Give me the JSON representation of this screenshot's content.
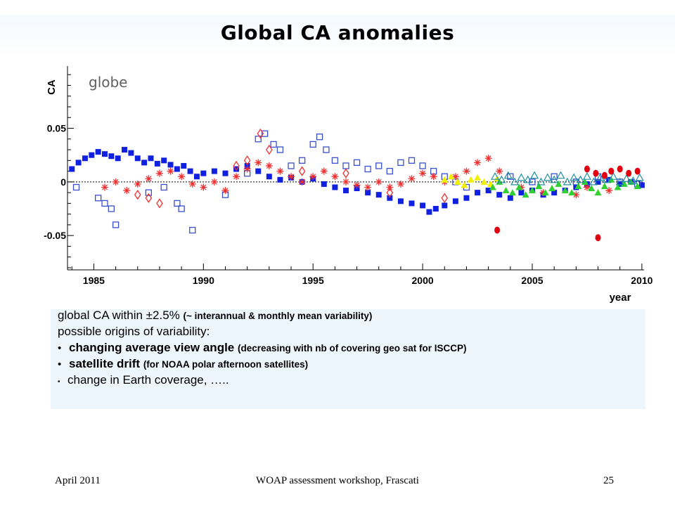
{
  "slide": {
    "title": "Global CA anomalies"
  },
  "chart_data": {
    "type": "scatter",
    "panel_label": "globe",
    "ylabel": "CA",
    "xlabel": "year",
    "xlim": [
      1983.8,
      2010.1
    ],
    "ylim": [
      -0.082,
      0.108
    ],
    "xticks": [
      1985,
      1990,
      1995,
      2000,
      2005,
      2010
    ],
    "yticks": [
      0.05,
      0,
      -0.05
    ],
    "ytick_labels": [
      "0.05",
      "0",
      "-0.05"
    ],
    "reference_line": 0,
    "colors": {
      "blue_filled": "#1020e0",
      "blue_open": "#3850d0",
      "red": "#f03030",
      "yellow": "#f0f000",
      "green": "#30d030",
      "teal": "#2090a0",
      "dark_red": "#e00010"
    },
    "series": [
      {
        "marker": "filled-square",
        "color": "#1020e0",
        "points": [
          [
            1984.0,
            0.012
          ],
          [
            1984.3,
            0.018
          ],
          [
            1984.6,
            0.022
          ],
          [
            1984.9,
            0.025
          ],
          [
            1985.2,
            0.028
          ],
          [
            1985.5,
            0.026
          ],
          [
            1985.8,
            0.024
          ],
          [
            1986.1,
            0.022
          ],
          [
            1986.4,
            0.03
          ],
          [
            1986.7,
            0.027
          ],
          [
            1987.0,
            0.022
          ],
          [
            1987.3,
            0.018
          ],
          [
            1987.6,
            0.022
          ],
          [
            1987.9,
            0.017
          ],
          [
            1988.2,
            0.02
          ],
          [
            1988.5,
            0.016
          ],
          [
            1988.8,
            0.012
          ],
          [
            1989.1,
            0.015
          ],
          [
            1989.4,
            0.01
          ],
          [
            1989.7,
            0.005
          ],
          [
            1990.0,
            0.008
          ],
          [
            1990.5,
            0.01
          ],
          [
            1991.0,
            0.008
          ],
          [
            1991.5,
            0.012
          ],
          [
            1992.0,
            0.015
          ],
          [
            1992.5,
            0.01
          ],
          [
            1993.0,
            0.005
          ],
          [
            1993.5,
            0.002
          ],
          [
            1994.0,
            0.004
          ],
          [
            1994.5,
            0.0
          ],
          [
            1995.0,
            0.003
          ],
          [
            1995.5,
            -0.002
          ],
          [
            1996.0,
            -0.005
          ],
          [
            1996.5,
            -0.008
          ],
          [
            1997.0,
            -0.006
          ],
          [
            1997.5,
            -0.01
          ],
          [
            1998.0,
            -0.012
          ],
          [
            1998.5,
            -0.015
          ],
          [
            1999.0,
            -0.018
          ],
          [
            1999.5,
            -0.02
          ],
          [
            2000.0,
            -0.022
          ],
          [
            2000.3,
            -0.028
          ],
          [
            2000.6,
            -0.025
          ],
          [
            2001.0,
            -0.022
          ],
          [
            2001.5,
            -0.018
          ],
          [
            2002.0,
            -0.015
          ],
          [
            2002.5,
            -0.01
          ],
          [
            2003.0,
            -0.008
          ],
          [
            2003.5,
            -0.012
          ],
          [
            2004.0,
            -0.015
          ],
          [
            2004.5,
            -0.01
          ],
          [
            2005.0,
            -0.008
          ],
          [
            2005.5,
            -0.012
          ],
          [
            2006.0,
            -0.01
          ],
          [
            2006.5,
            -0.008
          ],
          [
            2007.0,
            -0.005
          ],
          [
            2007.5,
            -0.002
          ],
          [
            2008.0,
            0.0
          ],
          [
            2008.5,
            0.002
          ],
          [
            2009.0,
            -0.002
          ],
          [
            2009.5,
            0.0
          ],
          [
            2010.0,
            -0.003
          ]
        ]
      },
      {
        "marker": "open-square",
        "color": "#3850d0",
        "points": [
          [
            1984.2,
            -0.005
          ],
          [
            1985.2,
            -0.015
          ],
          [
            1985.5,
            -0.02
          ],
          [
            1985.8,
            -0.025
          ],
          [
            1986.0,
            -0.04
          ],
          [
            1987.5,
            -0.01
          ],
          [
            1988.2,
            -0.005
          ],
          [
            1988.8,
            -0.02
          ],
          [
            1989.0,
            -0.025
          ],
          [
            1989.5,
            -0.045
          ],
          [
            1991.0,
            -0.012
          ],
          [
            1992.0,
            0.008
          ],
          [
            1992.5,
            0.04
          ],
          [
            1992.8,
            0.045
          ],
          [
            1993.2,
            0.035
          ],
          [
            1993.5,
            0.03
          ],
          [
            1994.0,
            0.015
          ],
          [
            1994.5,
            0.02
          ],
          [
            1995.0,
            0.035
          ],
          [
            1995.3,
            0.042
          ],
          [
            1995.6,
            0.03
          ],
          [
            1996.0,
            0.02
          ],
          [
            1996.5,
            0.015
          ],
          [
            1997.0,
            0.018
          ],
          [
            1997.5,
            0.012
          ],
          [
            1998.0,
            0.015
          ],
          [
            1998.5,
            0.01
          ],
          [
            1999.0,
            0.018
          ],
          [
            1999.5,
            0.02
          ],
          [
            2000.0,
            0.015
          ],
          [
            2000.5,
            0.01
          ],
          [
            2001.0,
            0.005
          ],
          [
            2001.5,
            0.0
          ],
          [
            2002.0,
            -0.005
          ],
          [
            2004.0,
            0.005
          ],
          [
            2005.0,
            0.0
          ],
          [
            2006.0,
            0.005
          ],
          [
            2007.0,
            0.0
          ],
          [
            2008.0,
            0.005
          ],
          [
            2009.0,
            0.0
          ],
          [
            2009.8,
            -0.002
          ]
        ]
      },
      {
        "marker": "asterisk",
        "color": "#f03030",
        "points": [
          [
            1985.5,
            -0.005
          ],
          [
            1986.0,
            0.0
          ],
          [
            1986.5,
            -0.008
          ],
          [
            1987.0,
            -0.002
          ],
          [
            1987.5,
            0.003
          ],
          [
            1988.0,
            0.008
          ],
          [
            1988.5,
            0.01
          ],
          [
            1989.0,
            0.005
          ],
          [
            1989.5,
            -0.002
          ],
          [
            1990.0,
            -0.005
          ],
          [
            1990.5,
            0.0
          ],
          [
            1991.0,
            -0.008
          ],
          [
            1991.5,
            0.005
          ],
          [
            1992.0,
            0.012
          ],
          [
            1992.5,
            0.018
          ],
          [
            1993.0,
            0.015
          ],
          [
            1993.5,
            0.01
          ],
          [
            1994.0,
            0.005
          ],
          [
            1994.5,
            0.0
          ],
          [
            1995.0,
            0.005
          ],
          [
            1995.5,
            0.01
          ],
          [
            1996.0,
            0.005
          ],
          [
            1996.5,
            0.0
          ],
          [
            1997.0,
            -0.003
          ],
          [
            1997.5,
            -0.005
          ],
          [
            1998.0,
            0.0
          ],
          [
            1998.5,
            -0.005
          ],
          [
            1999.0,
            -0.002
          ],
          [
            1999.5,
            0.003
          ],
          [
            2000.0,
            0.008
          ],
          [
            2000.5,
            0.005
          ],
          [
            2001.0,
            0.0
          ],
          [
            2001.5,
            0.005
          ],
          [
            2002.0,
            0.01
          ],
          [
            2002.5,
            0.018
          ],
          [
            2003.0,
            0.022
          ],
          [
            2003.5,
            0.01
          ],
          [
            2004.5,
            -0.005
          ],
          [
            2005.5,
            -0.01
          ],
          [
            2007.0,
            -0.012
          ],
          [
            2007.5,
            -0.005
          ],
          [
            2008.5,
            -0.008
          ]
        ]
      },
      {
        "marker": "diamond",
        "color": "#f03030",
        "points": [
          [
            1987.0,
            -0.012
          ],
          [
            1987.5,
            -0.015
          ],
          [
            1988.0,
            -0.02
          ],
          [
            1991.5,
            0.015
          ],
          [
            1992.0,
            0.02
          ],
          [
            1992.6,
            0.045
          ],
          [
            1993.0,
            0.03
          ],
          [
            1994.5,
            0.01
          ],
          [
            1996.5,
            0.008
          ],
          [
            1998.5,
            -0.01
          ],
          [
            2001.0,
            -0.015
          ]
        ]
      },
      {
        "marker": "filled-triangle",
        "color": "#f0f000",
        "points": [
          [
            2001.0,
            0.002
          ],
          [
            2001.3,
            0.005
          ],
          [
            2001.6,
            0.0
          ],
          [
            2001.9,
            -0.003
          ],
          [
            2002.2,
            0.002
          ],
          [
            2002.5,
            0.004
          ],
          [
            2002.8,
            0.0
          ],
          [
            2003.1,
            -0.002
          ],
          [
            2003.4,
            0.003
          ]
        ]
      },
      {
        "marker": "filled-triangle",
        "color": "#30d030",
        "points": [
          [
            2003.2,
            -0.005
          ],
          [
            2003.5,
            0.0
          ],
          [
            2003.8,
            -0.008
          ],
          [
            2004.1,
            -0.01
          ],
          [
            2004.4,
            -0.005
          ],
          [
            2004.7,
            -0.012
          ],
          [
            2005.0,
            -0.008
          ],
          [
            2005.3,
            -0.004
          ],
          [
            2005.6,
            -0.01
          ],
          [
            2005.9,
            -0.006
          ],
          [
            2006.2,
            -0.002
          ],
          [
            2006.5,
            -0.008
          ],
          [
            2006.8,
            -0.01
          ],
          [
            2007.1,
            -0.004
          ],
          [
            2007.4,
            0.0
          ],
          [
            2007.7,
            -0.006
          ],
          [
            2008.0,
            -0.01
          ],
          [
            2008.3,
            -0.004
          ],
          [
            2008.6,
            0.002
          ],
          [
            2008.9,
            -0.005
          ],
          [
            2009.2,
            -0.002
          ],
          [
            2009.5,
            0.0
          ],
          [
            2009.8,
            -0.004
          ]
        ]
      },
      {
        "marker": "open-triangle",
        "color": "#2090a0",
        "points": [
          [
            2003.3,
            0.005
          ],
          [
            2003.6,
            0.002
          ],
          [
            2003.9,
            0.006
          ],
          [
            2004.2,
            0.0
          ],
          [
            2004.5,
            0.004
          ],
          [
            2004.8,
            0.002
          ],
          [
            2005.1,
            0.006
          ],
          [
            2005.4,
            0.0
          ],
          [
            2005.7,
            0.004
          ],
          [
            2006.0,
            0.002
          ],
          [
            2006.3,
            0.006
          ],
          [
            2006.6,
            0.0
          ],
          [
            2006.9,
            0.004
          ],
          [
            2007.2,
            0.002
          ],
          [
            2007.5,
            0.005
          ],
          [
            2007.8,
            0.0
          ],
          [
            2008.1,
            0.004
          ],
          [
            2008.4,
            0.002
          ],
          [
            2008.7,
            0.005
          ],
          [
            2009.0,
            0.0
          ],
          [
            2009.3,
            0.003
          ],
          [
            2009.6,
            0.001
          ],
          [
            2009.9,
            0.004
          ]
        ]
      },
      {
        "marker": "filled-circle",
        "color": "#e00010",
        "points": [
          [
            2003.4,
            -0.045
          ],
          [
            2007.5,
            0.012
          ],
          [
            2007.9,
            0.008
          ],
          [
            2008.0,
            -0.052
          ],
          [
            2008.3,
            0.006
          ],
          [
            2008.6,
            0.01
          ],
          [
            2009.0,
            0.012
          ],
          [
            2009.4,
            0.008
          ],
          [
            2009.8,
            0.01
          ]
        ]
      }
    ]
  },
  "notes": {
    "line1_main": "global CA within ±2.5% ",
    "line1_detail": "(~ interannual & monthly mean variability)",
    "line2": "possible origins of variability:",
    "line3_bullet": "•",
    "line3_main": "changing average view angle ",
    "line3_detail": "(decreasing with nb of covering geo sat for ISCCP)",
    "line4_bullet": "•",
    "line4_main": "satellite drift ",
    "line4_detail": "(for NOAA polar afternoon satellites)",
    "line5_bullet": "•",
    "line5_main": "change in Earth coverage, ….."
  },
  "footer": {
    "date": "April 2011",
    "event": "WOAP assessment workshop, Frascati",
    "page": "25"
  }
}
